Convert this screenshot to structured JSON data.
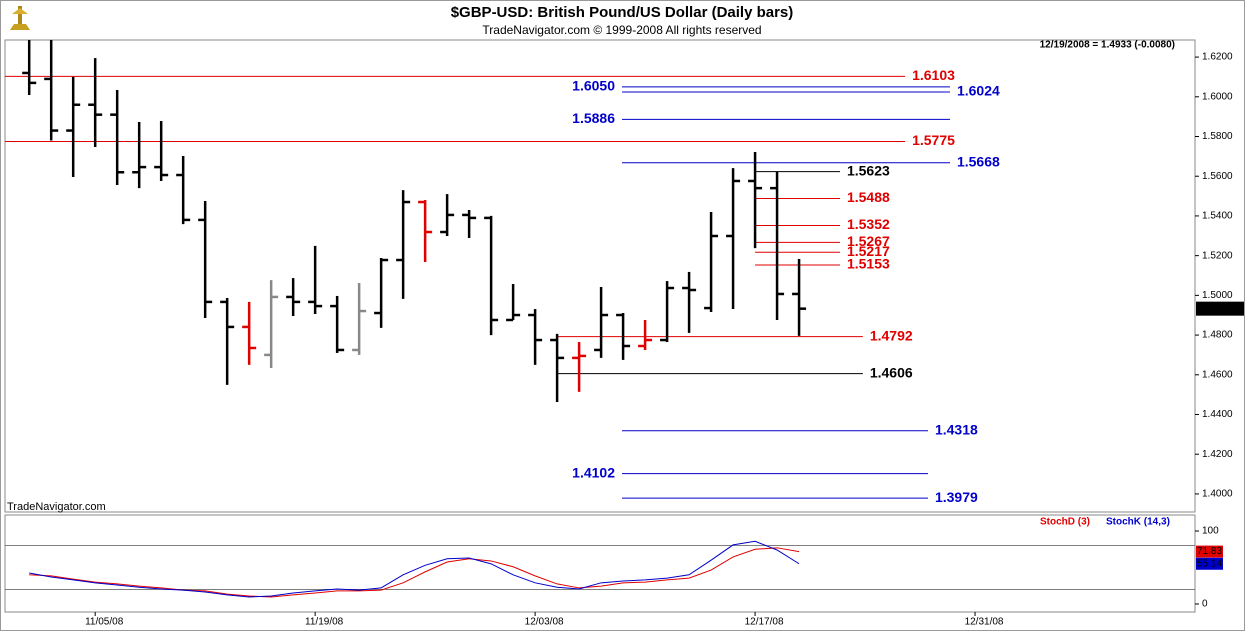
{
  "title": "$GBP-USD:  British Pound/US Dollar  (Daily bars)",
  "subtitle": "TradeNavigator.com © 1999-2008 All rights reserved",
  "info": "12/19/2008 = 1.4933 (-0.0080)",
  "watermark": "TradeNavigator.com",
  "chart_data": [
    {
      "type": "ohlc",
      "x": [
        0,
        1,
        2,
        3,
        4,
        5,
        6,
        7,
        8,
        9,
        10,
        11,
        12,
        13,
        14,
        15,
        16,
        17,
        18,
        19,
        20,
        21,
        22,
        23,
        24,
        25,
        26,
        27,
        28,
        29,
        30,
        31,
        32,
        33,
        34,
        35
      ],
      "open": [
        1.612,
        1.609,
        1.583,
        1.596,
        1.591,
        1.562,
        1.5646,
        1.5606,
        1.538,
        1.4967,
        1.4841,
        1.47,
        1.4992,
        1.4967,
        1.4946,
        1.4725,
        1.4911,
        1.5178,
        1.547,
        1.5319,
        1.5405,
        1.539,
        1.4876,
        1.4901,
        1.4775,
        1.4685,
        1.4725,
        1.4901,
        1.4745,
        1.4775,
        1.5037,
        1.4936,
        1.5299,
        1.5576,
        1.554,
        1.5007
      ],
      "high": [
        1.6286,
        1.6286,
        1.61,
        1.6195,
        1.6034,
        1.5873,
        1.5878,
        1.5702,
        1.5475,
        1.4987,
        1.4967,
        1.5077,
        1.5087,
        1.5249,
        1.4997,
        1.5062,
        1.5188,
        1.553,
        1.548,
        1.551,
        1.543,
        1.54,
        1.5057,
        1.4931,
        1.4806,
        1.4765,
        1.5042,
        1.4911,
        1.4876,
        1.5072,
        1.5118,
        1.542,
        1.5641,
        1.5722,
        1.5621,
        1.5183
      ],
      "low": [
        1.6009,
        1.578,
        1.5596,
        1.5747,
        1.5556,
        1.554,
        1.5576,
        1.5359,
        1.4886,
        1.4549,
        1.465,
        1.4634,
        1.4896,
        1.4906,
        1.471,
        1.47,
        1.4836,
        1.4982,
        1.5168,
        1.5299,
        1.5289,
        1.48,
        1.4876,
        1.465,
        1.4463,
        1.4514,
        1.4685,
        1.4675,
        1.4725,
        1.4765,
        1.4811,
        1.4916,
        1.4931,
        1.5238,
        1.4876,
        1.4796
      ],
      "close": [
        1.607,
        1.583,
        1.596,
        1.591,
        1.562,
        1.5646,
        1.5606,
        1.538,
        1.4967,
        1.4841,
        1.4735,
        1.4992,
        1.4967,
        1.4946,
        1.4725,
        1.4921,
        1.5178,
        1.547,
        1.5319,
        1.5405,
        1.539,
        1.4876,
        1.4901,
        1.4775,
        1.4685,
        1.4695,
        1.4901,
        1.4745,
        1.4775,
        1.5037,
        1.5027,
        1.5299,
        1.5576,
        1.554,
        1.5007,
        1.4933
      ],
      "bar_colors": [
        "#000",
        "#000",
        "#000",
        "#000",
        "#000",
        "#000",
        "#000",
        "#000",
        "#000",
        "#000",
        "#e00000",
        "#888888",
        "#000",
        "#000",
        "#000",
        "#888888",
        "#000",
        "#000",
        "#e00000",
        "#000",
        "#000",
        "#000",
        "#000",
        "#000",
        "#000",
        "#e00000",
        "#000",
        "#000",
        "#e00000",
        "#000",
        "#000",
        "#000",
        "#000",
        "#000",
        "#000",
        "#000"
      ],
      "xlim": [
        -1.1,
        53
      ],
      "ylim": [
        1.3909,
        1.6286
      ],
      "yticks": [
        {
          "value": 1.62,
          "label": "1.6200"
        },
        {
          "value": 1.6,
          "label": "1.6000"
        },
        {
          "value": 1.58,
          "label": "1.5800"
        },
        {
          "value": 1.56,
          "label": "1.5600"
        },
        {
          "value": 1.54,
          "label": "1.5400"
        },
        {
          "value": 1.52,
          "label": "1.5200"
        },
        {
          "value": 1.5,
          "label": "1.5000"
        },
        {
          "value": 1.48,
          "label": "1.4800"
        },
        {
          "value": 1.46,
          "label": "1.4600"
        },
        {
          "value": 1.44,
          "label": "1.4400"
        },
        {
          "value": 1.42,
          "label": "1.4200"
        },
        {
          "value": 1.4,
          "label": "1.4000"
        }
      ],
      "levels": [
        {
          "value": 1.6103,
          "label": "1.6103",
          "color": "#e00000",
          "from": -1.1,
          "to": 39.82,
          "label_side": "right"
        },
        {
          "value": 1.605,
          "label": "1.6050",
          "color": "#0000cc",
          "from": 26.95,
          "to": 41.86,
          "label_side": "left"
        },
        {
          "value": 1.6024,
          "label": "1.6024",
          "color": "#0000cc",
          "from": 26.95,
          "to": 41.86,
          "label_side": "right"
        },
        {
          "value": 1.5886,
          "label": "1.5886",
          "color": "#0000cc",
          "from": 26.95,
          "to": 41.86,
          "label_side": "left"
        },
        {
          "value": 1.5775,
          "label": "1.5775",
          "color": "#e00000",
          "from": -1.1,
          "to": 39.82,
          "label_side": "right"
        },
        {
          "value": 1.5668,
          "label": "1.5668",
          "color": "#0000cc",
          "from": 26.95,
          "to": 41.86,
          "label_side": "right"
        },
        {
          "value": 1.5623,
          "label": "1.5623",
          "color": "#000000",
          "from": 33,
          "to": 36.86,
          "label_side": "right"
        },
        {
          "value": 1.5488,
          "label": "1.5488",
          "color": "#e00000",
          "from": 33,
          "to": 36.86,
          "label_side": "right"
        },
        {
          "value": 1.5352,
          "label": "1.5352",
          "color": "#e00000",
          "from": 33,
          "to": 36.86,
          "label_side": "right"
        },
        {
          "value": 1.5267,
          "label": "1.5267",
          "color": "#e00000",
          "from": 33,
          "to": 36.86,
          "label_side": "right"
        },
        {
          "value": 1.5217,
          "label": "1.5217",
          "color": "#e00000",
          "from": 33,
          "to": 36.86,
          "label_side": "right"
        },
        {
          "value": 1.5153,
          "label": "1.5153",
          "color": "#e00000",
          "from": 33,
          "to": 36.86,
          "label_side": "right"
        },
        {
          "value": 1.4792,
          "label": "1.4792",
          "color": "#e00000",
          "from": 24,
          "to": 37.9,
          "label_side": "right"
        },
        {
          "value": 1.4606,
          "label": "1.4606",
          "color": "#000000",
          "from": 24,
          "to": 37.9,
          "label_side": "right"
        },
        {
          "value": 1.4318,
          "label": "1.4318",
          "color": "#0000cc",
          "from": 26.95,
          "to": 40.86,
          "label_side": "right"
        },
        {
          "value": 1.4102,
          "label": "1.4102",
          "color": "#0000cc",
          "from": 26.95,
          "to": 40.86,
          "label_side": "left"
        },
        {
          "value": 1.3979,
          "label": "1.3979",
          "color": "#0000cc",
          "from": 26.95,
          "to": 40.86,
          "label_side": "right"
        }
      ]
    },
    {
      "type": "line",
      "x": [
        0,
        1,
        2,
        3,
        4,
        5,
        6,
        7,
        8,
        9,
        10,
        11,
        12,
        13,
        14,
        15,
        16,
        17,
        18,
        19,
        20,
        21,
        22,
        23,
        24,
        25,
        26,
        27,
        28,
        29,
        30,
        31,
        32,
        33,
        34,
        35
      ],
      "series": [
        {
          "name": "StochD (3)",
          "color": "#e00000",
          "values": [
            40,
            38.5,
            34,
            30,
            27.5,
            24.5,
            22,
            19,
            18,
            13.5,
            11,
            9.5,
            12.5,
            15,
            18,
            18,
            19,
            29,
            44,
            57.5,
            62,
            59,
            51,
            38.5,
            27.5,
            22,
            24.5,
            29,
            30,
            33,
            35.5,
            46.5,
            64.5,
            75,
            77,
            71.83
          ]
        },
        {
          "name": "StochK (14,3)",
          "color": "#0000cc",
          "values": [
            42.5,
            37,
            33,
            29,
            26,
            23,
            20.5,
            19,
            16.5,
            12.5,
            9.5,
            11,
            15,
            18,
            20.5,
            19,
            22,
            40,
            53,
            62,
            63,
            55,
            40,
            29,
            23,
            20.5,
            29,
            31.5,
            33,
            35.5,
            40,
            60,
            81,
            86,
            74,
            55.14
          ]
        }
      ],
      "xlim": [
        -1.1,
        53
      ],
      "xticks": [
        {
          "value": 3,
          "label": "11/05/08"
        },
        {
          "value": 13,
          "label": "11/19/08"
        },
        {
          "value": 23,
          "label": "12/03/08"
        },
        {
          "value": 33,
          "label": "12/17/08"
        },
        {
          "value": 43,
          "label": "12/31/08"
        }
      ],
      "ylim": [
        -11,
        122
      ],
      "yticks": [
        0,
        100
      ],
      "reference_lines": [
        80,
        20
      ]
    }
  ]
}
